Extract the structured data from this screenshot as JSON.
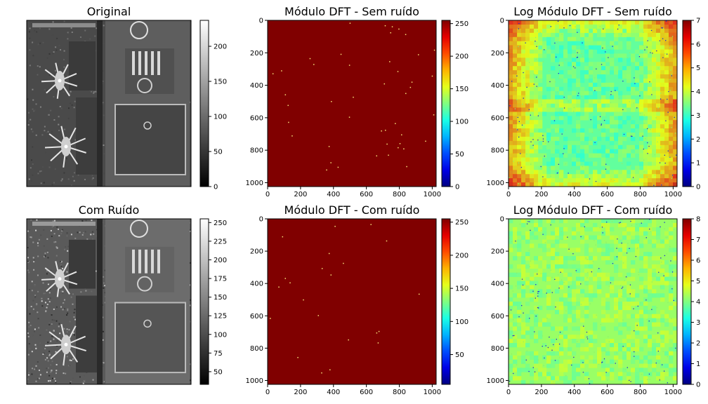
{
  "chart_data": [
    {
      "type": "heatmap",
      "title": "Original",
      "content": "grayscale aerial image of an airport",
      "colormap": "gray",
      "show_axes": false,
      "colorbar": {
        "ticks": [
          0,
          50,
          100,
          150,
          200
        ],
        "range": [
          0,
          237
        ]
      }
    },
    {
      "type": "heatmap",
      "title": "Módulo DFT - Sem ruído",
      "colormap": "jet",
      "background_value": 255,
      "xlim": [
        0,
        1024
      ],
      "ylim": [
        1024,
        0
      ],
      "xticks": [
        0,
        200,
        400,
        600,
        800,
        1000
      ],
      "yticks": [
        0,
        200,
        400,
        600,
        800,
        1000
      ],
      "colorbar": {
        "ticks": [
          0,
          50,
          100,
          150,
          200,
          250
        ],
        "range": [
          0,
          255
        ]
      }
    },
    {
      "type": "heatmap",
      "title": "Log Módulo DFT - Sem ruído",
      "colormap": "jet",
      "typical_value": 3.3,
      "xlim": [
        0,
        1024
      ],
      "ylim": [
        1024,
        0
      ],
      "xticks": [
        0,
        200,
        400,
        600,
        800,
        1000
      ],
      "yticks": [
        0,
        200,
        400,
        600,
        800,
        1000
      ],
      "colorbar": {
        "ticks": [
          0,
          1,
          2,
          3,
          4,
          5,
          6,
          7
        ],
        "range": [
          0,
          7
        ]
      }
    },
    {
      "type": "heatmap",
      "title": "Com Ruído",
      "content": "grayscale aerial image of an airport with added noise",
      "colormap": "gray",
      "show_axes": false,
      "colorbar": {
        "ticks": [
          50,
          75,
          100,
          125,
          150,
          175,
          200,
          225,
          250
        ],
        "range": [
          33,
          255
        ]
      }
    },
    {
      "type": "heatmap",
      "title": "Módulo DFT - Com ruído",
      "colormap": "jet",
      "background_value": 255,
      "xlim": [
        0,
        1024
      ],
      "ylim": [
        1024,
        0
      ],
      "xticks": [
        0,
        200,
        400,
        600,
        800,
        1000
      ],
      "yticks": [
        0,
        200,
        400,
        600,
        800,
        1000
      ],
      "colorbar": {
        "ticks": [
          50,
          100,
          150,
          200,
          250
        ],
        "range": [
          5,
          255
        ]
      }
    },
    {
      "type": "heatmap",
      "title": "Log Módulo DFT - Com ruído",
      "colormap": "jet",
      "typical_value": 4.2,
      "xlim": [
        0,
        1024
      ],
      "ylim": [
        1024,
        0
      ],
      "xticks": [
        0,
        200,
        400,
        600,
        800,
        1000
      ],
      "yticks": [
        0,
        200,
        400,
        600,
        800,
        1000
      ],
      "colorbar": {
        "ticks": [
          0,
          1,
          2,
          3,
          4,
          5,
          6,
          7,
          8
        ],
        "range": [
          0,
          8
        ]
      }
    }
  ]
}
